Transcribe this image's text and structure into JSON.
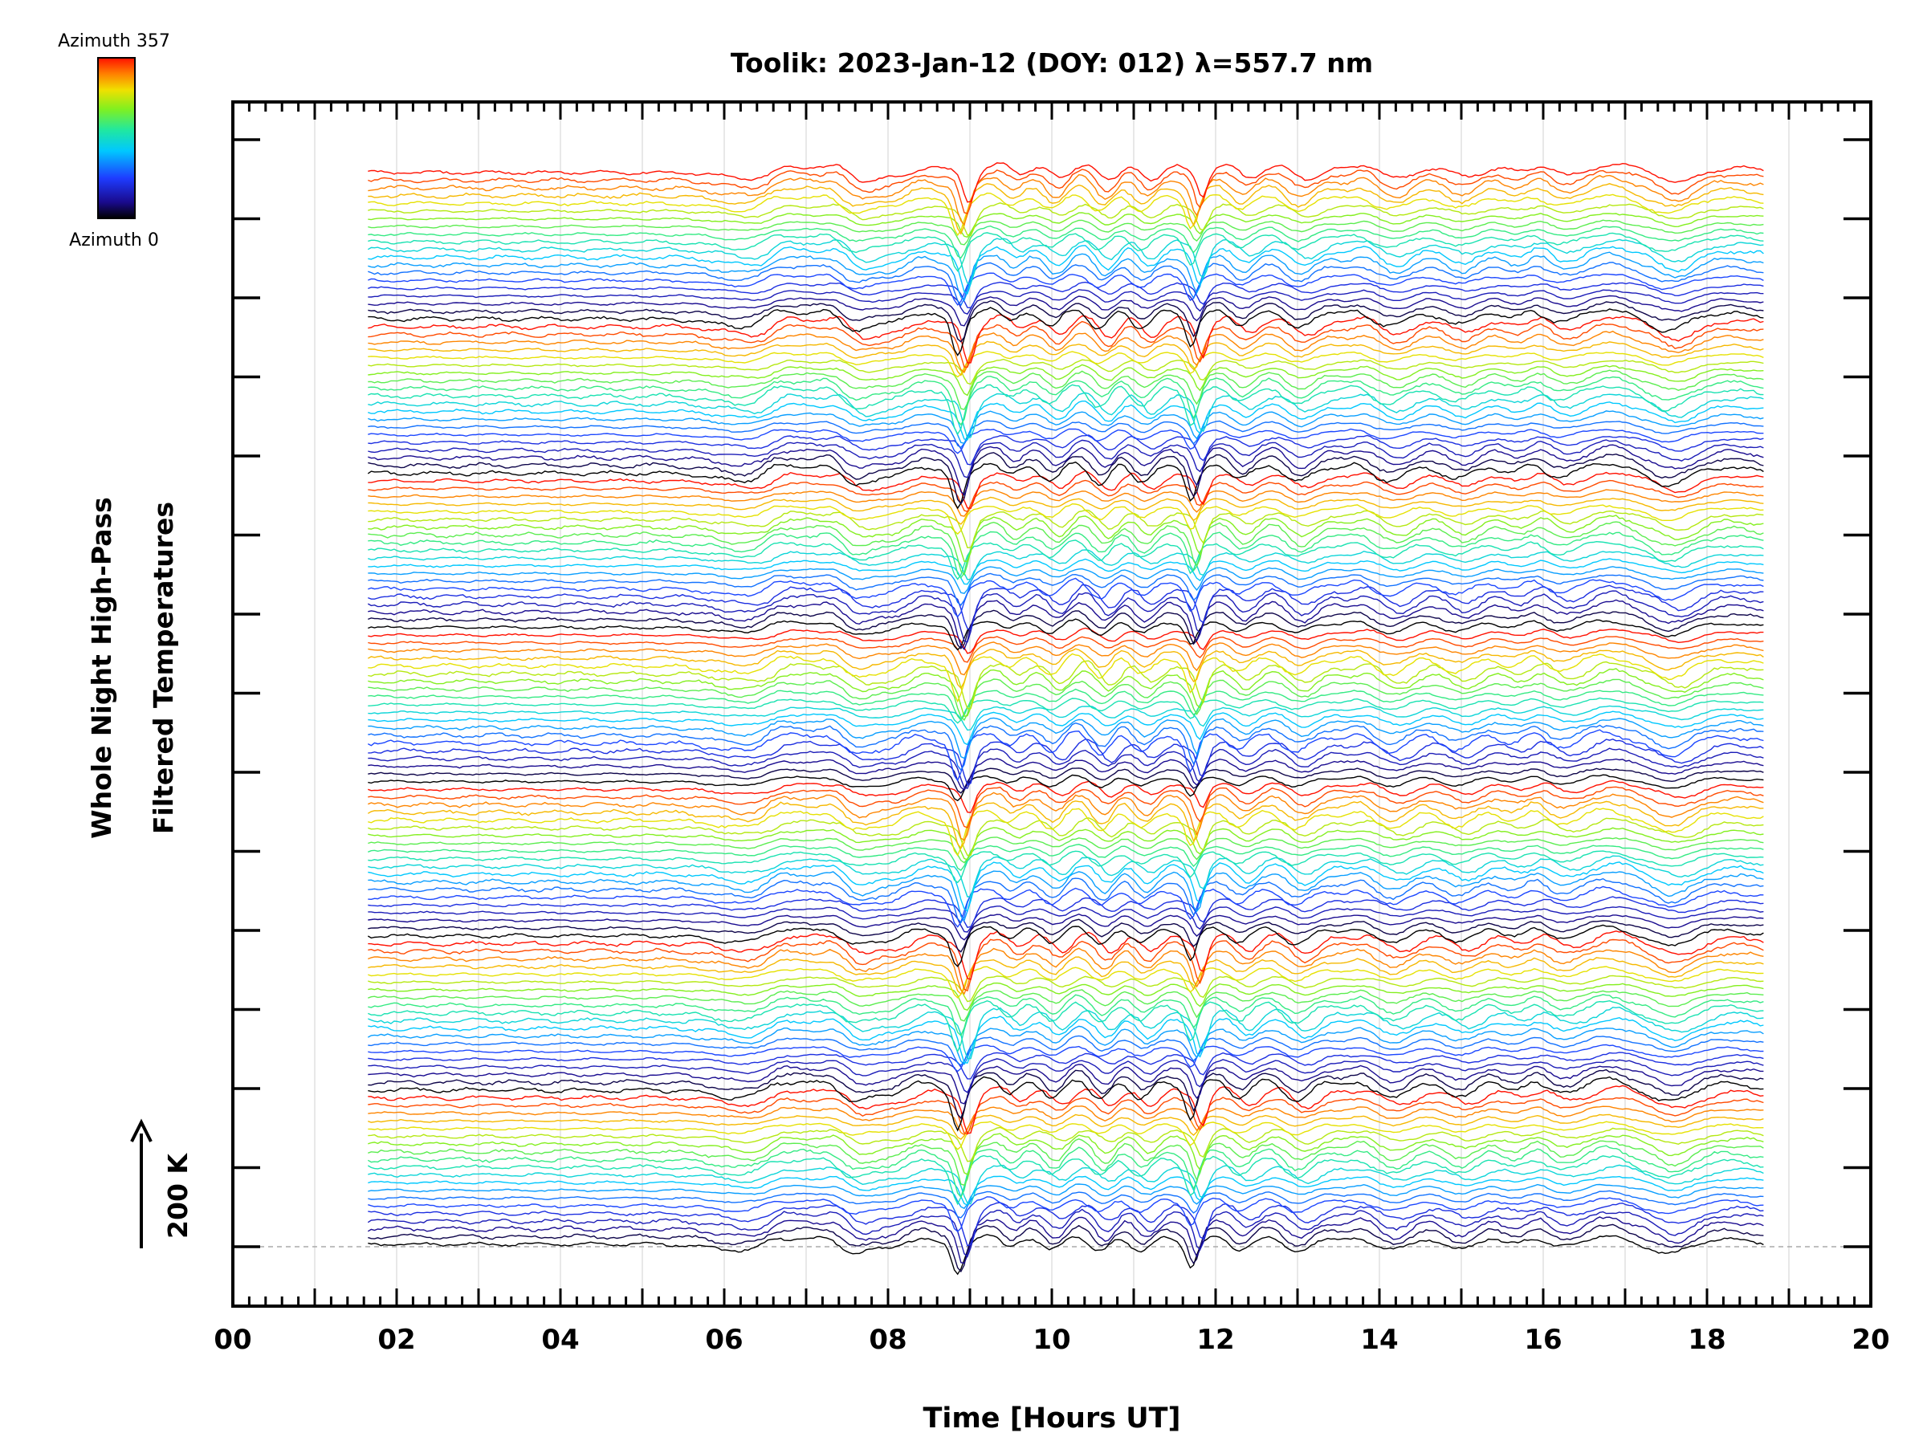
{
  "chart_data": {
    "type": "line",
    "title": "Toolik: 2023-Jan-12 (DOY: 012) λ=557.7 nm",
    "xlabel": "Time [Hours UT]",
    "ylabel_line1": "Whole Night High-Pass",
    "ylabel_line2": "Filtered Temperatures",
    "x_ticks": [
      "00",
      "02",
      "04",
      "06",
      "08",
      "10",
      "12",
      "14",
      "16",
      "18",
      "20"
    ],
    "xlim": [
      0,
      20
    ],
    "x_start": 1.65,
    "x_end": 18.7,
    "scale_bar_label": "200 K",
    "colorbar": {
      "top_label": "Azimuth 357",
      "bottom_label": "Azimuth 0"
    },
    "series_count": 140,
    "grid": true,
    "colors": {
      "low_azimuth": "#000000",
      "mid_azimuth": "#00ff00",
      "high_azimuth": "#ff0000"
    }
  }
}
